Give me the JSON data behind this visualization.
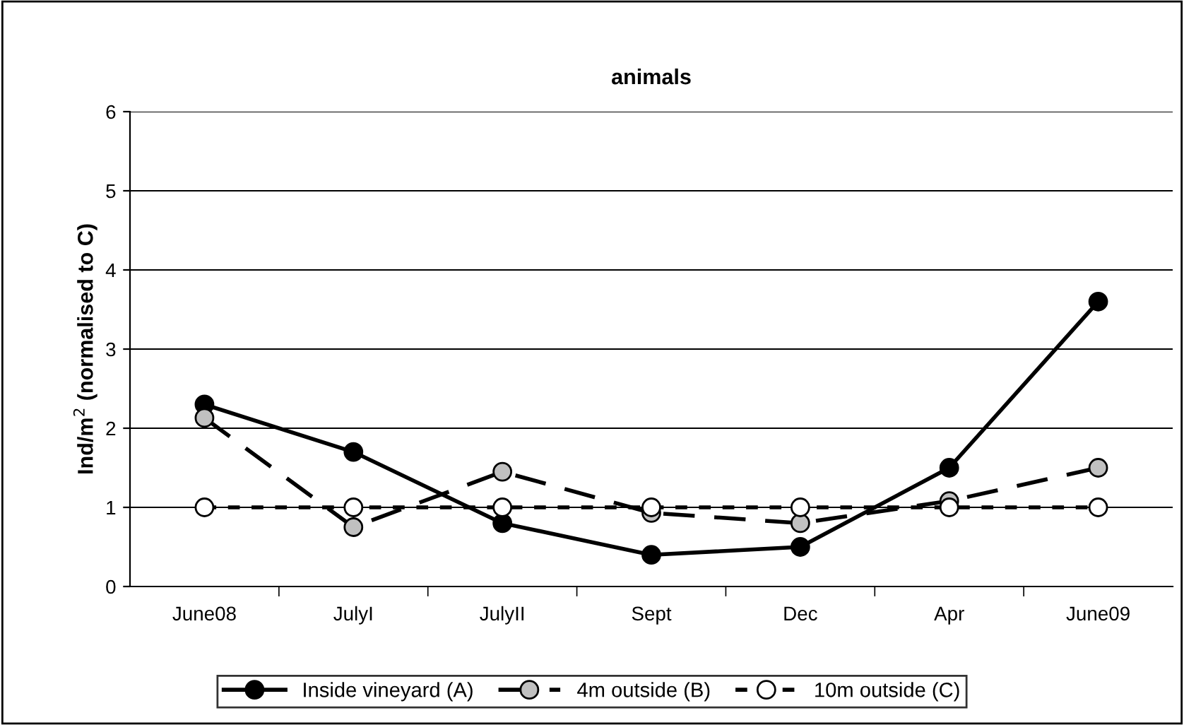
{
  "chart_data": {
    "type": "line",
    "title": "animals",
    "ylabel": "Ind/m$^{2}$ (normalised to C)",
    "categories": [
      "June08",
      "JulyI",
      "JulyII",
      "Sept",
      "Dec",
      "Apr",
      "June09"
    ],
    "series": [
      {
        "name": "Inside vineyard (A)",
        "color": "#000000",
        "line_style": "solid",
        "values": [
          2.3,
          1.7,
          0.8,
          0.4,
          0.5,
          1.5,
          3.6
        ]
      },
      {
        "name": "4m outside (B)",
        "color": "#c0c0c0",
        "line_style": "dashed",
        "values": [
          2.13,
          0.75,
          1.45,
          0.93,
          0.8,
          1.08,
          1.5
        ]
      },
      {
        "name": "10m outside (C)",
        "color": "#ffffff",
        "line_style": "dotted",
        "values": [
          1,
          1,
          1,
          1,
          1,
          1,
          1
        ]
      }
    ],
    "ylim": [
      0,
      6
    ],
    "yticks": [
      0,
      1,
      2,
      3,
      4,
      5,
      6
    ],
    "grid": "y",
    "legend": "bottom",
    "marker": "circle"
  }
}
